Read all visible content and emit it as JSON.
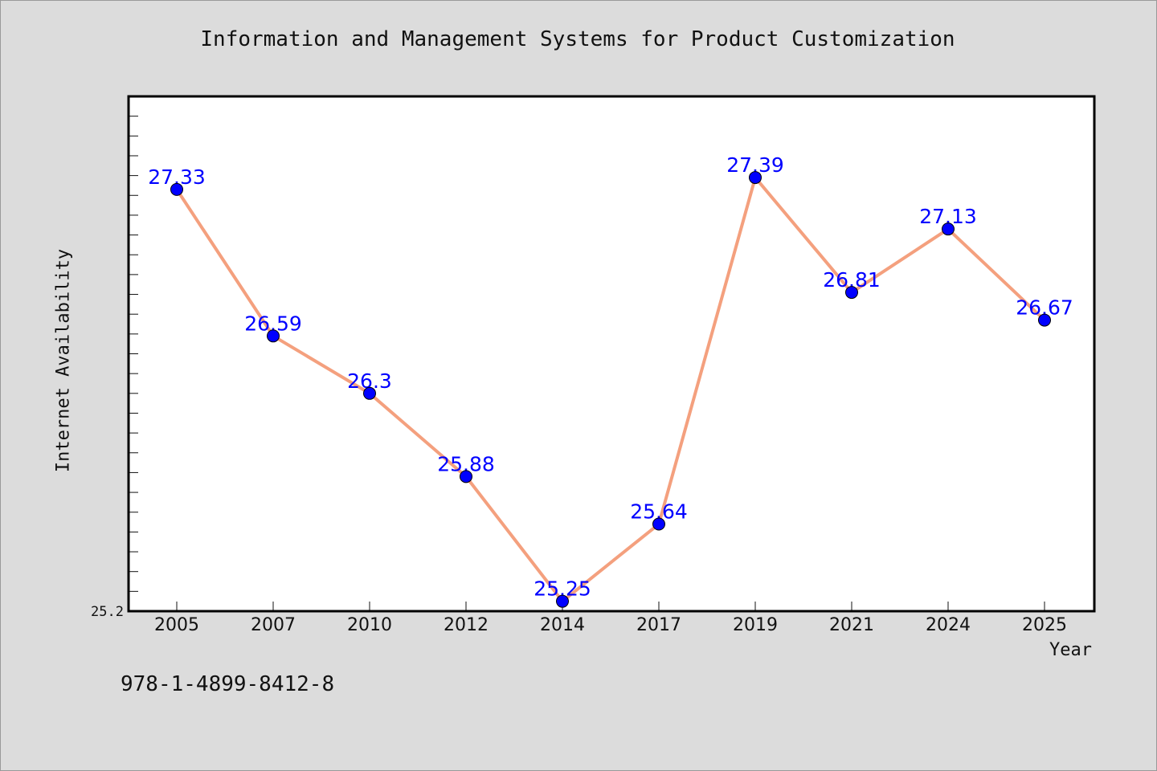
{
  "chart_data": {
    "type": "line",
    "title": "Information and Management Systems for Product Customization",
    "xlabel": "Year",
    "ylabel": "Internet Availability",
    "categories": [
      "2005",
      "2007",
      "2010",
      "2012",
      "2014",
      "2017",
      "2019",
      "2021",
      "2024",
      "2025"
    ],
    "series": [
      {
        "values": [
          27.33,
          26.59,
          26.3,
          25.88,
          25.25,
          25.64,
          27.39,
          26.81,
          27.13,
          26.67
        ]
      }
    ],
    "data_labels": [
      "27.33",
      "26.59",
      "26.3",
      "25.88",
      "25.25",
      "25.64",
      "27.39",
      "26.81",
      "27.13",
      "26.67"
    ],
    "ylim": [
      25.2,
      27.8
    ],
    "y_tick_labels": [
      "25.2"
    ],
    "grid": false,
    "colors": {
      "line": "#f4a07e",
      "marker": "#0000ff",
      "data_label": "#0000ff",
      "plot_background": "#ffffff",
      "page_background": "#dcdcdc"
    }
  },
  "footer": {
    "isbn": "978-1-4899-8412-8"
  }
}
